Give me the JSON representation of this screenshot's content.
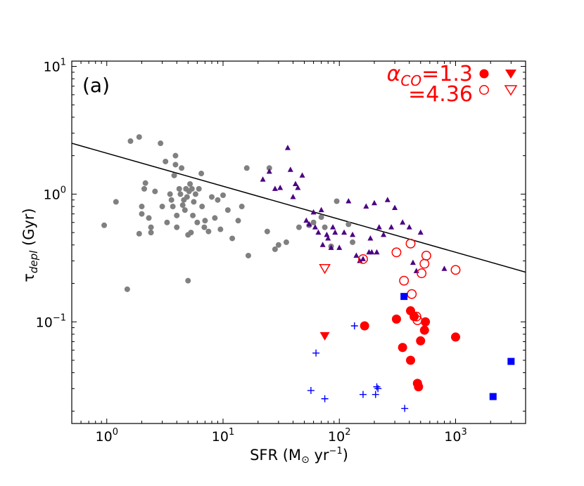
{
  "chart_data": {
    "type": "scatter",
    "panel_label": "(a)",
    "xlabel": {
      "prefix": "SFR (M",
      "sub": "⊙",
      "mid": " yr",
      "sup": "−1",
      "suffix": ")"
    },
    "ylabel": {
      "main": "τ",
      "sub": "depl",
      "suffix": " (Gyr)"
    },
    "x_scale": "log",
    "y_scale": "log",
    "xlim": [
      0.5,
      4000
    ],
    "ylim": [
      0.016,
      11
    ],
    "x_ticks": [
      {
        "value": 1,
        "base": "10",
        "exp": "0"
      },
      {
        "value": 10,
        "base": "10",
        "exp": "1"
      },
      {
        "value": 100,
        "base": "10",
        "exp": "2"
      },
      {
        "value": 1000,
        "base": "10",
        "exp": "3"
      }
    ],
    "y_ticks": [
      {
        "value": 0.1,
        "base": "10",
        "exp": "−1"
      },
      {
        "value": 1,
        "base": "10",
        "exp": "0"
      },
      {
        "value": 10,
        "base": "10",
        "exp": "1"
      }
    ],
    "legend": {
      "line1": {
        "alpha": "α",
        "alpha_sub": "CO",
        "text": "=1.3"
      },
      "line2": {
        "text": "=4.36"
      },
      "color": "#ff0000"
    },
    "fit_line": {
      "x": [
        0.5,
        4000
      ],
      "y": [
        2.5,
        0.245
      ],
      "color": "#000000"
    },
    "series": [
      {
        "name": "gray-circles",
        "marker": "circle",
        "color": "#808080",
        "points": [
          [
            0.95,
            0.57
          ],
          [
            1.2,
            0.87
          ],
          [
            1.5,
            0.18
          ],
          [
            1.6,
            2.6
          ],
          [
            1.9,
            2.8
          ],
          [
            1.9,
            0.49
          ],
          [
            2.0,
            0.8
          ],
          [
            2.0,
            0.7
          ],
          [
            2.1,
            1.1
          ],
          [
            2.15,
            1.22
          ],
          [
            2.3,
            0.65
          ],
          [
            2.4,
            0.5
          ],
          [
            2.4,
            0.55
          ],
          [
            2.6,
            1.05
          ],
          [
            2.9,
            2.5
          ],
          [
            3.0,
            0.8
          ],
          [
            3.2,
            1.8
          ],
          [
            3.3,
            0.6
          ],
          [
            3.5,
            1.0
          ],
          [
            3.6,
            0.9
          ],
          [
            3.7,
            0.8
          ],
          [
            3.8,
            1.4
          ],
          [
            3.9,
            2.0
          ],
          [
            3.9,
            1.7
          ],
          [
            4.0,
            0.68
          ],
          [
            4.0,
            0.55
          ],
          [
            4.2,
            1.1
          ],
          [
            4.3,
            1.0
          ],
          [
            4.4,
            1.6
          ],
          [
            4.5,
            0.82
          ],
          [
            4.6,
            0.9
          ],
          [
            4.7,
            0.75
          ],
          [
            4.8,
            1.1
          ],
          [
            4.9,
            0.95
          ],
          [
            5.0,
            0.48
          ],
          [
            5.0,
            0.21
          ],
          [
            5.1,
            1.05
          ],
          [
            5.2,
            1.2
          ],
          [
            5.3,
            0.5
          ],
          [
            5.4,
            1.1
          ],
          [
            5.5,
            0.68
          ],
          [
            5.6,
            0.87
          ],
          [
            5.8,
            1.0
          ],
          [
            6.0,
            0.6
          ],
          [
            6.2,
            1.1
          ],
          [
            6.5,
            1.45
          ],
          [
            6.6,
            0.8
          ],
          [
            6.9,
            0.55
          ],
          [
            7.0,
            0.62
          ],
          [
            7.5,
            0.51
          ],
          [
            8.0,
            0.95
          ],
          [
            8.5,
            0.65
          ],
          [
            9.0,
            0.9
          ],
          [
            9.5,
            0.53
          ],
          [
            10.0,
            0.98
          ],
          [
            11.0,
            0.75
          ],
          [
            12.0,
            0.45
          ],
          [
            13.5,
            0.62
          ],
          [
            14.5,
            0.8
          ],
          [
            16.0,
            1.6
          ],
          [
            16.5,
            0.33
          ],
          [
            24.0,
            0.51
          ],
          [
            25.0,
            1.6
          ],
          [
            28.0,
            0.37
          ],
          [
            30.0,
            0.4
          ],
          [
            35.0,
            0.42
          ],
          [
            45.0,
            0.55
          ],
          [
            55.0,
            0.57
          ],
          [
            60.0,
            0.6
          ],
          [
            70.0,
            0.66
          ],
          [
            75.0,
            0.55
          ],
          [
            85.0,
            0.39
          ],
          [
            95.0,
            0.88
          ],
          [
            120.0,
            0.58
          ],
          [
            130.0,
            0.42
          ]
        ]
      },
      {
        "name": "indigo-triangles",
        "marker": "triangle-up",
        "color": "#4b0082",
        "points": [
          [
            22.0,
            1.3
          ],
          [
            25.0,
            1.5
          ],
          [
            28.0,
            1.1
          ],
          [
            31.0,
            1.12
          ],
          [
            36.0,
            2.3
          ],
          [
            38.0,
            1.55
          ],
          [
            40.0,
            0.95
          ],
          [
            42.0,
            1.2
          ],
          [
            44.0,
            1.12
          ],
          [
            48.0,
            1.4
          ],
          [
            52.0,
            0.62
          ],
          [
            55.0,
            0.58
          ],
          [
            60.0,
            0.72
          ],
          [
            62.0,
            0.55
          ],
          [
            66.0,
            0.5
          ],
          [
            70.0,
            0.75
          ],
          [
            72.0,
            0.4
          ],
          [
            78.0,
            0.48
          ],
          [
            80.0,
            0.45
          ],
          [
            85.0,
            0.38
          ],
          [
            88.0,
            0.55
          ],
          [
            92.0,
            0.5
          ],
          [
            100.0,
            0.38
          ],
          [
            110.0,
            0.5
          ],
          [
            120.0,
            0.88
          ],
          [
            130.0,
            0.48
          ],
          [
            140.0,
            0.33
          ],
          [
            150.0,
            0.3
          ],
          [
            160.0,
            0.31
          ],
          [
            170.0,
            0.8
          ],
          [
            180.0,
            0.35
          ],
          [
            185.0,
            0.45
          ],
          [
            190.0,
            0.35
          ],
          [
            200.0,
            0.85
          ],
          [
            210.0,
            0.35
          ],
          [
            220.0,
            0.55
          ],
          [
            240.0,
            0.48
          ],
          [
            260.0,
            0.9
          ],
          [
            280.0,
            0.55
          ],
          [
            300.0,
            0.78
          ],
          [
            350.0,
            0.6
          ],
          [
            400.0,
            0.55
          ],
          [
            430.0,
            0.29
          ],
          [
            460.0,
            0.25
          ],
          [
            500.0,
            0.5
          ],
          [
            800.0,
            0.26
          ]
        ]
      },
      {
        "name": "red-filled-circles",
        "marker": "circle-filled",
        "color": "#ff0000",
        "points": [
          [
            165.0,
            0.093
          ],
          [
            310.0,
            0.105
          ],
          [
            350.0,
            0.063
          ],
          [
            410.0,
            0.122
          ],
          [
            410.0,
            0.05
          ],
          [
            440.0,
            0.11
          ],
          [
            470.0,
            0.033
          ],
          [
            480.0,
            0.031
          ],
          [
            500.0,
            0.071
          ],
          [
            540.0,
            0.086
          ],
          [
            550.0,
            0.1
          ],
          [
            1000.0,
            0.076
          ]
        ]
      },
      {
        "name": "red-open-circles",
        "marker": "circle-open",
        "color": "#ff0000",
        "points": [
          [
            160.0,
            0.31
          ],
          [
            310.0,
            0.35
          ],
          [
            360.0,
            0.21
          ],
          [
            410.0,
            0.41
          ],
          [
            420.0,
            0.165
          ],
          [
            460.0,
            0.11
          ],
          [
            470.0,
            0.103
          ],
          [
            510.0,
            0.24
          ],
          [
            540.0,
            0.285
          ],
          [
            560.0,
            0.33
          ],
          [
            1000.0,
            0.255
          ]
        ]
      },
      {
        "name": "red-filled-triangle-down",
        "marker": "triangle-down-filled",
        "color": "#ff0000",
        "points": [
          [
            75.0,
            0.077
          ]
        ]
      },
      {
        "name": "red-open-triangle-down",
        "marker": "triangle-down-open",
        "color": "#ff0000",
        "points": [
          [
            75.0,
            0.26
          ]
        ]
      },
      {
        "name": "blue-squares",
        "marker": "square",
        "color": "#0000ff",
        "points": [
          [
            360.0,
            0.158
          ],
          [
            2100.0,
            0.026
          ],
          [
            3000.0,
            0.049
          ]
        ]
      },
      {
        "name": "blue-plus",
        "marker": "plus",
        "color": "#0000ff",
        "points": [
          [
            57.0,
            0.029
          ],
          [
            63.0,
            0.057
          ],
          [
            75.0,
            0.025
          ],
          [
            135.0,
            0.093
          ],
          [
            160.0,
            0.027
          ],
          [
            205.0,
            0.027
          ],
          [
            210.0,
            0.031
          ],
          [
            215.0,
            0.03
          ],
          [
            365.0,
            0.021
          ]
        ]
      }
    ]
  }
}
